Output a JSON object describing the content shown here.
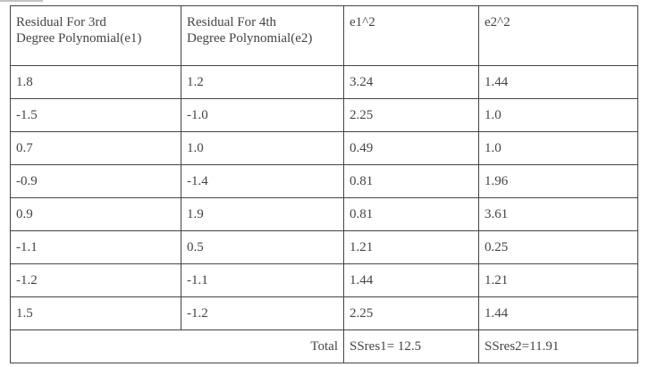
{
  "table": {
    "headers": [
      {
        "line1": "Residual For 3rd",
        "line2": "Degree Polynomial(e1)"
      },
      {
        "line1": "Residual For 4th",
        "line2": "Degree Polynomial(e2)"
      },
      {
        "line1": "e1^2",
        "line2": ""
      },
      {
        "line1": "e2^2",
        "line2": ""
      }
    ],
    "rows": [
      [
        "1.8",
        "1.2",
        "3.24",
        "1.44"
      ],
      [
        "-1.5",
        "-1.0",
        "2.25",
        "1.0"
      ],
      [
        "0.7",
        "1.0",
        "0.49",
        "1.0"
      ],
      [
        "-0.9",
        "-1.4",
        "0.81",
        "1.96"
      ],
      [
        "0.9",
        "1.9",
        "0.81",
        "3.61"
      ],
      [
        "-1.1",
        "0.5",
        "1.21",
        "0.25"
      ],
      [
        "-1.2",
        "-1.1",
        "1.44",
        "1.21"
      ],
      [
        "1.5",
        "-1.2",
        "2.25",
        "1.44"
      ]
    ],
    "total": {
      "label": "Total",
      "ssres1": "SSres1= 12.5",
      "ssres2": "SSres2=11.91"
    }
  }
}
